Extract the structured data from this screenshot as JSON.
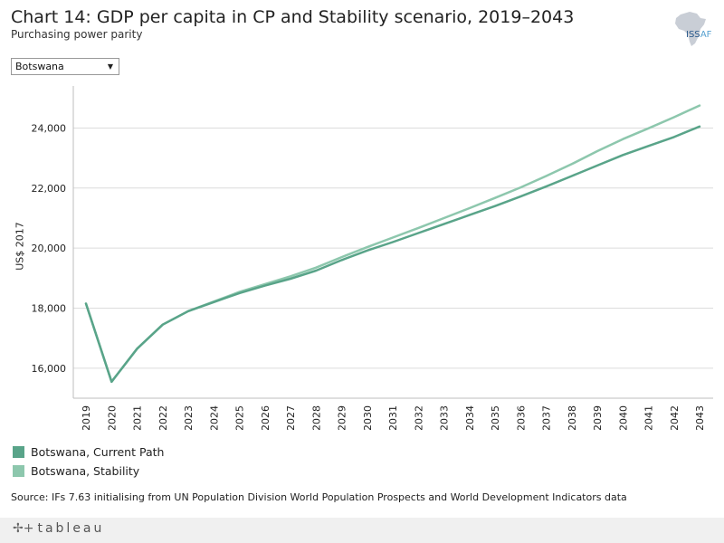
{
  "title": "Chart 14: GDP per capita in CP and Stability scenario, 2019–2043",
  "subtitle": "Purchasing power parity",
  "logo": {
    "text_main": "ISS",
    "text_accent": "AF"
  },
  "filter": {
    "selected": "Botswana"
  },
  "legend": [
    {
      "label": "Botswana, Current Path",
      "color": "#59a489"
    },
    {
      "label": "Botswana, Stability",
      "color": "#8dc7ad"
    }
  ],
  "source": "Source: IFs 7.63 initialising from UN Population Division World Population Prospects and World Development Indicators data",
  "footer": {
    "brand": "tableau"
  },
  "chart_data": {
    "type": "line",
    "title": "Chart 14: GDP per capita in CP and Stability scenario, 2019–2043",
    "xlabel": "",
    "ylabel": "US$ 2017",
    "ylim": [
      15000,
      25400
    ],
    "yticks": [
      16000,
      18000,
      20000,
      22000,
      24000
    ],
    "ytick_labels": [
      "16,000",
      "18,000",
      "20,000",
      "22,000",
      "24,000"
    ],
    "x": [
      "2019",
      "2020",
      "2021",
      "2022",
      "2023",
      "2024",
      "2025",
      "2026",
      "2027",
      "2028",
      "2029",
      "2030",
      "2031",
      "2032",
      "2033",
      "2034",
      "2035",
      "2036",
      "2037",
      "2038",
      "2039",
      "2040",
      "2041",
      "2042",
      "2043"
    ],
    "series": [
      {
        "name": "Botswana, Current Path",
        "color": "#59a489",
        "values": [
          18150,
          15550,
          16650,
          17450,
          17900,
          18200,
          18500,
          18750,
          18980,
          19250,
          19600,
          19920,
          20200,
          20500,
          20800,
          21100,
          21400,
          21720,
          22050,
          22400,
          22750,
          23100,
          23400,
          23700,
          24050
        ]
      },
      {
        "name": "Botswana, Stability",
        "color": "#8dc7ad",
        "values": [
          18150,
          15550,
          16650,
          17450,
          17900,
          18220,
          18540,
          18800,
          19060,
          19350,
          19700,
          20030,
          20350,
          20670,
          21000,
          21330,
          21670,
          22020,
          22400,
          22800,
          23230,
          23630,
          23990,
          24360,
          24750
        ]
      }
    ]
  }
}
